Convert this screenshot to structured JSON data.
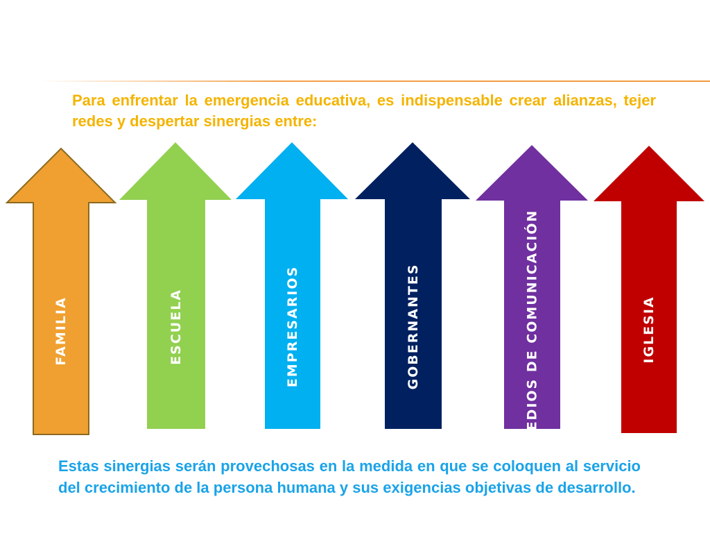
{
  "intro_text": "Para enfrentar la emergencia educativa, es indispensable crear alianzas, tejer redes y despertar sinergias entre:",
  "arrows": [
    {
      "label": "FAMILIA",
      "color": "#f0a030"
    },
    {
      "label": "ESCUELA",
      "color": "#92d050"
    },
    {
      "label": "EMPRESARIOS",
      "color": "#00b0f0"
    },
    {
      "label": "GOBERNANTES",
      "color": "#002060"
    },
    {
      "label": "MEDIOS DE COMUNICACIÓN",
      "color": "#7030a0"
    },
    {
      "label": "IGLESIA",
      "color": "#c00000"
    }
  ],
  "outro_text": "Estas sinergias serán provechosas en la medida en que se coloquen al servicio del crecimiento de la persona humana y sus exigencias objetivas de desarrollo."
}
